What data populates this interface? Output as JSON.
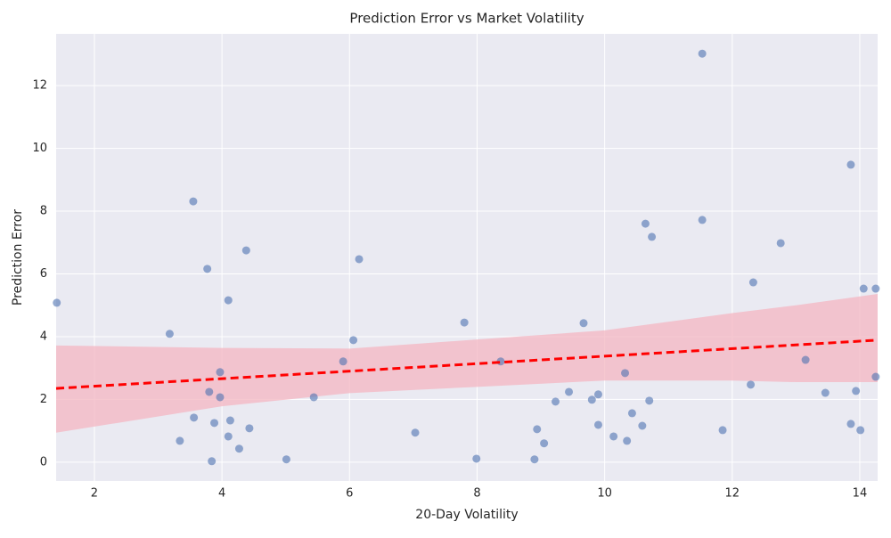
{
  "chart_data": {
    "type": "scatter",
    "title": "Prediction Error vs Market Volatility",
    "x_label": "20-Day Volatility",
    "y_label": "Prediction Error",
    "xlim": [
      1.4,
      14.28
    ],
    "ylim": [
      -0.6,
      13.65
    ],
    "xticks": [
      2,
      4,
      6,
      8,
      10,
      12,
      14
    ],
    "yticks": [
      0,
      2,
      4,
      6,
      8,
      10,
      12
    ],
    "grid": true,
    "series": [
      {
        "color": "#4c72b0",
        "x": [
          1.41,
          3.18,
          3.55,
          3.77,
          4.1,
          4.38,
          3.97,
          3.8,
          3.97,
          3.56,
          3.88,
          4.13,
          4.43,
          3.34,
          4.1,
          4.27,
          3.84,
          5.01,
          5.44,
          5.9,
          6.06,
          6.15,
          7.03,
          7.8,
          7.99,
          8.37,
          8.9,
          8.94,
          9.05,
          9.23,
          9.44,
          9.67,
          9.8,
          9.9,
          9.9,
          10.14,
          10.32,
          10.35,
          10.43,
          10.59,
          10.64,
          10.7,
          10.74,
          11.53,
          11.53,
          11.85,
          12.29,
          12.33,
          12.76,
          13.15,
          13.46,
          13.86,
          13.86,
          13.94,
          14.01,
          14.06,
          14.25,
          14.25
        ],
        "values": [
          5.08,
          4.09,
          8.31,
          6.16,
          5.16,
          6.75,
          2.87,
          2.24,
          2.07,
          1.42,
          1.25,
          1.33,
          1.08,
          0.68,
          0.82,
          0.43,
          0.03,
          0.09,
          2.07,
          3.21,
          3.89,
          6.47,
          0.94,
          4.45,
          0.11,
          3.21,
          0.09,
          1.05,
          0.6,
          1.93,
          2.24,
          4.43,
          1.99,
          2.16,
          1.19,
          0.82,
          2.84,
          0.68,
          1.56,
          1.16,
          7.6,
          1.96,
          7.18,
          13.02,
          7.72,
          1.02,
          2.47,
          5.73,
          6.98,
          3.26,
          2.21,
          9.48,
          1.22,
          2.27,
          1.02,
          5.53,
          5.53,
          2.72
        ]
      }
    ],
    "trend": {
      "color": "#ff0000",
      "x": [
        1.4,
        14.28
      ],
      "values": [
        2.35,
        3.89
      ]
    },
    "band": {
      "color": "#f4b6c2",
      "x": [
        1.4,
        4,
        6,
        8,
        10,
        12,
        13,
        14.28
      ],
      "upper": [
        3.72,
        3.64,
        3.62,
        3.91,
        4.2,
        4.75,
        5.0,
        5.36
      ],
      "lower": [
        0.94,
        1.78,
        2.2,
        2.4,
        2.6,
        2.6,
        2.55,
        2.55
      ]
    }
  }
}
